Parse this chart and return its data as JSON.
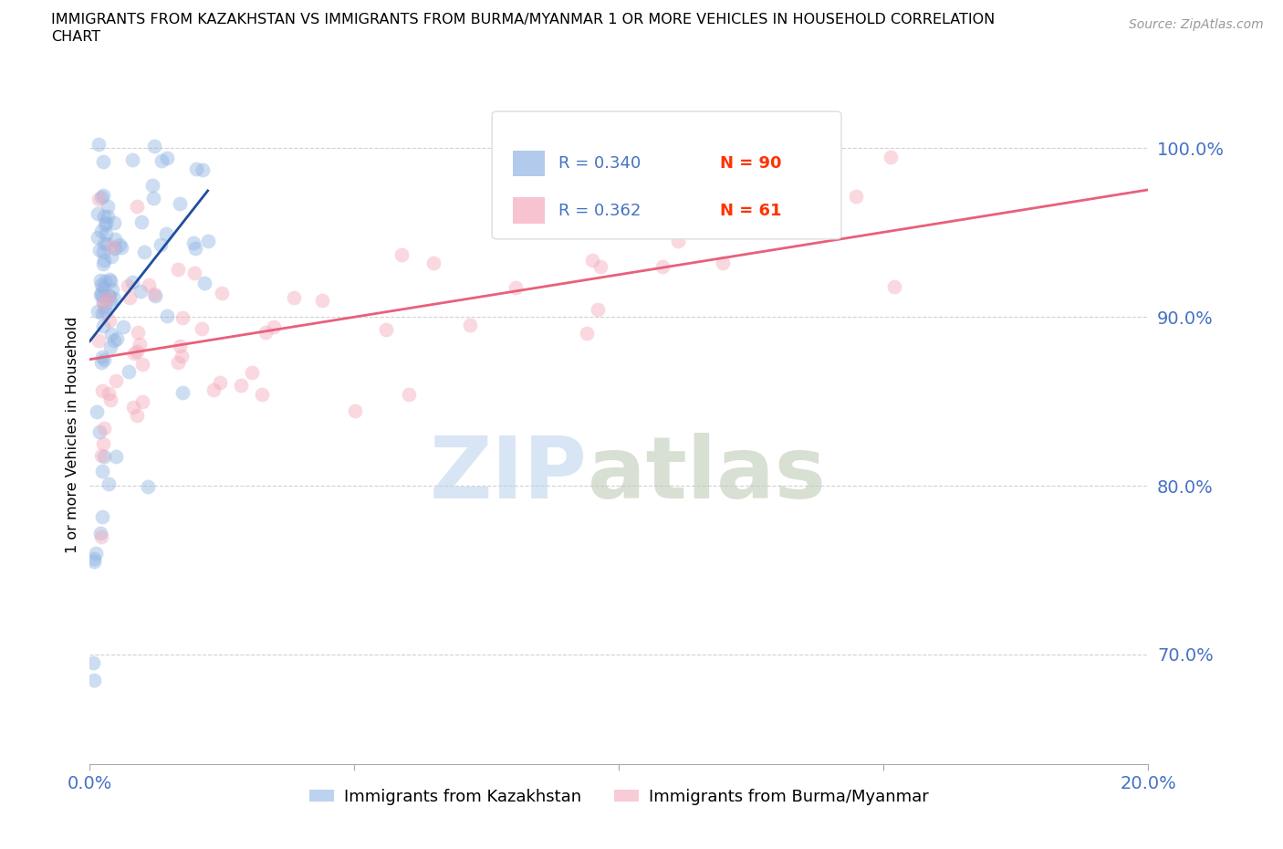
{
  "title_line1": "IMMIGRANTS FROM KAZAKHSTAN VS IMMIGRANTS FROM BURMA/MYANMAR 1 OR MORE VEHICLES IN HOUSEHOLD CORRELATION",
  "title_line2": "CHART",
  "source": "Source: ZipAtlas.com",
  "ylabel": "1 or more Vehicles in Household",
  "xlim": [
    0.0,
    0.2
  ],
  "ylim": [
    0.635,
    1.025
  ],
  "yticks": [
    0.7,
    0.8,
    0.9,
    1.0
  ],
  "yticklabels": [
    "70.0%",
    "80.0%",
    "90.0%",
    "100.0%"
  ],
  "xtick_left_label": "0.0%",
  "xtick_right_label": "20.0%",
  "legend_r_kaz": "R = 0.340",
  "legend_n_kaz": "N = 90",
  "legend_r_bur": "R = 0.362",
  "legend_n_bur": "N = 61",
  "kaz_color": "#92B4E3",
  "bur_color": "#F4AABC",
  "kaz_line_color": "#1F4E9E",
  "bur_line_color": "#E8607A",
  "kaz_label": "Immigrants from Kazakhstan",
  "bur_label": "Immigrants from Burma/Myanmar",
  "watermark_zip": "ZIP",
  "watermark_atlas": "atlas",
  "tick_color": "#4472C4",
  "grid_color": "#CCCCCC",
  "n_kaz": 90,
  "n_bur": 61,
  "R_kaz": 0.34,
  "R_bur": 0.362,
  "legend_r_color": "#4472C4",
  "legend_n_color": "#FF3300"
}
